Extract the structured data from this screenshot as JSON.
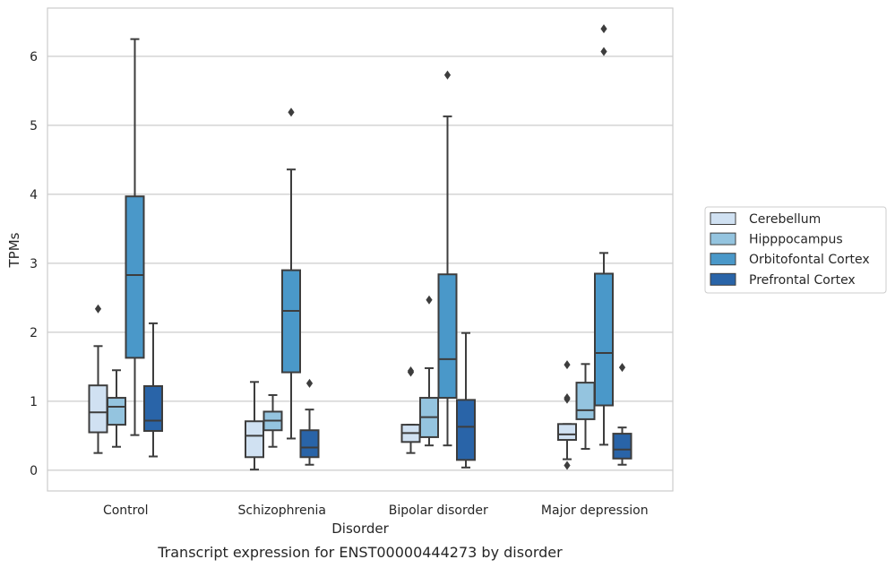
{
  "chart_data": {
    "type": "box",
    "title": "",
    "caption": "Transcript expression for ENST00000444273 by disorder",
    "xlabel": "Disorder",
    "ylabel": "TPMs",
    "ylim": [
      -0.3,
      6.7
    ],
    "yticks": [
      0,
      1,
      2,
      3,
      4,
      5,
      6
    ],
    "grid": "horizontal",
    "legend_position": "right",
    "categories": [
      "Control",
      "Schizophrenia",
      "Bipolar disorder",
      "Major depression"
    ],
    "series": [
      {
        "name": "Cerebellum",
        "color": "#d0e1f2",
        "boxes": [
          {
            "whisker_low": 0.25,
            "q1": 0.55,
            "median": 0.84,
            "q3": 1.23,
            "whisker_high": 1.8,
            "outliers": [
              2.34
            ]
          },
          {
            "whisker_low": 0.01,
            "q1": 0.19,
            "median": 0.5,
            "q3": 0.71,
            "whisker_high": 1.28,
            "outliers": []
          },
          {
            "whisker_low": 0.25,
            "q1": 0.41,
            "median": 0.54,
            "q3": 0.66,
            "whisker_high": 0.66,
            "outliers": [
              1.42,
              1.44
            ]
          },
          {
            "whisker_low": 0.16,
            "q1": 0.44,
            "median": 0.52,
            "q3": 0.67,
            "whisker_high": 0.67,
            "outliers": [
              0.07,
              1.03,
              1.05,
              1.53
            ]
          }
        ]
      },
      {
        "name": "Hipppocampus",
        "color": "#94c4df",
        "boxes": [
          {
            "whisker_low": 0.34,
            "q1": 0.66,
            "median": 0.92,
            "q3": 1.05,
            "whisker_high": 1.45,
            "outliers": []
          },
          {
            "whisker_low": 0.34,
            "q1": 0.58,
            "median": 0.72,
            "q3": 0.85,
            "whisker_high": 1.09,
            "outliers": []
          },
          {
            "whisker_low": 0.36,
            "q1": 0.48,
            "median": 0.77,
            "q3": 1.05,
            "whisker_high": 1.48,
            "outliers": [
              2.47
            ]
          },
          {
            "whisker_low": 0.31,
            "q1": 0.74,
            "median": 0.87,
            "q3": 1.27,
            "whisker_high": 1.54,
            "outliers": []
          }
        ]
      },
      {
        "name": "Orbitofontal Cortex",
        "color": "#4a98c9",
        "boxes": [
          {
            "whisker_low": 0.51,
            "q1": 1.63,
            "median": 2.83,
            "q3": 3.97,
            "whisker_high": 6.25,
            "outliers": []
          },
          {
            "whisker_low": 0.46,
            "q1": 1.42,
            "median": 2.31,
            "q3": 2.9,
            "whisker_high": 4.36,
            "outliers": [
              5.19
            ]
          },
          {
            "whisker_low": 0.36,
            "q1": 1.05,
            "median": 1.61,
            "q3": 2.84,
            "whisker_high": 5.13,
            "outliers": [
              5.73
            ]
          },
          {
            "whisker_low": 0.37,
            "q1": 0.94,
            "median": 1.7,
            "q3": 2.85,
            "whisker_high": 3.15,
            "outliers": [
              6.07,
              6.4
            ]
          }
        ]
      },
      {
        "name": "Prefrontal Cortex",
        "color": "#2964a8",
        "boxes": [
          {
            "whisker_low": 0.2,
            "q1": 0.57,
            "median": 0.72,
            "q3": 1.22,
            "whisker_high": 2.13,
            "outliers": []
          },
          {
            "whisker_low": 0.08,
            "q1": 0.19,
            "median": 0.33,
            "q3": 0.58,
            "whisker_high": 0.88,
            "outliers": [
              1.26
            ]
          },
          {
            "whisker_low": 0.04,
            "q1": 0.15,
            "median": 0.63,
            "q3": 1.02,
            "whisker_high": 1.99,
            "outliers": []
          },
          {
            "whisker_low": 0.08,
            "q1": 0.17,
            "median": 0.3,
            "q3": 0.53,
            "whisker_high": 0.62,
            "outliers": [
              1.49
            ]
          }
        ]
      }
    ]
  }
}
